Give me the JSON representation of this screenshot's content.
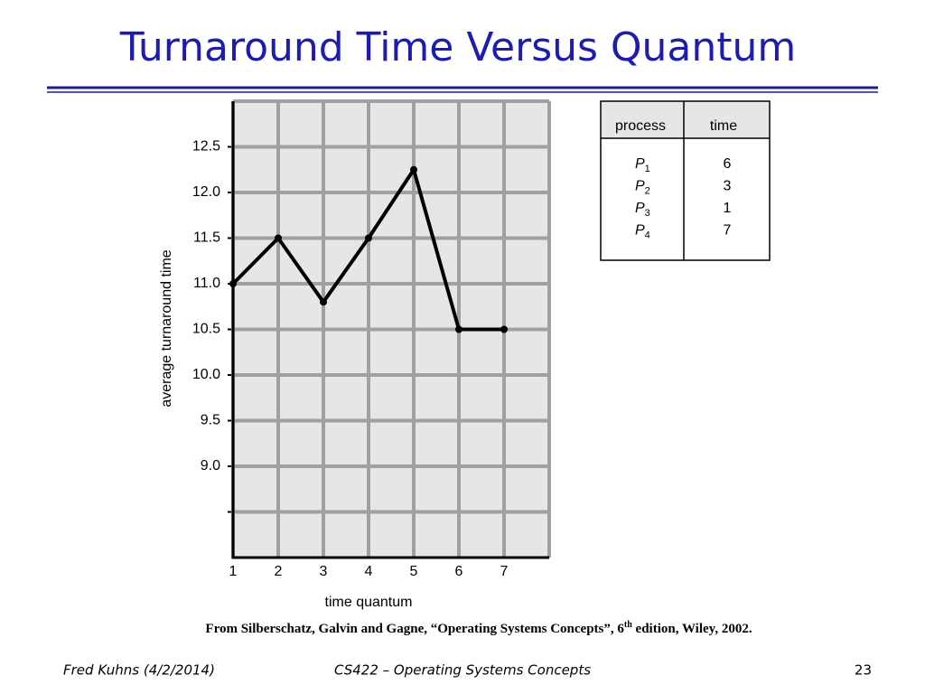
{
  "slide": {
    "title": "Turnaround Time Versus Quantum",
    "citation": {
      "before": "From Silberschatz, Galvin and Gagne, “Operating Systems Concepts”, 6",
      "sup": "th",
      "after": " edition, Wiley, 2002."
    },
    "footer": {
      "left": "Fred Kuhns (4/2/2014)",
      "center": "CS422 – Operating Systems Concepts",
      "right": "23"
    }
  },
  "table": {
    "headers": [
      "process",
      "time"
    ],
    "rows": [
      [
        {
          "name": "P",
          "sub": "1"
        },
        "6"
      ],
      [
        {
          "name": "P",
          "sub": "2"
        },
        "3"
      ],
      [
        {
          "name": "P",
          "sub": "3"
        },
        "1"
      ],
      [
        {
          "name": "P",
          "sub": "4"
        },
        "7"
      ]
    ]
  },
  "chart_data": {
    "type": "line",
    "x_label": "time quantum",
    "y_label": "average turnaround time",
    "x": [
      1,
      2,
      3,
      4,
      5,
      6,
      7
    ],
    "series": [
      {
        "name": "average turnaround time",
        "color": "#000000",
        "values": [
          11.0,
          11.5,
          10.8,
          11.5,
          12.25,
          10.5,
          10.5
        ]
      }
    ],
    "xlim": [
      1,
      8
    ],
    "xticks": [
      1,
      2,
      3,
      4,
      5,
      6,
      7
    ],
    "ylim": [
      8,
      13
    ],
    "yticks": [
      {
        "value": 9,
        "label": "9.0"
      },
      9.5,
      {
        "value": 10,
        "label": "10.0"
      },
      10.5,
      {
        "value": 11,
        "label": "11.0"
      },
      11.5,
      {
        "value": 12,
        "label": "12.0"
      },
      12.5
    ],
    "minor_yticks": [
      8.5
    ],
    "grid": true
  }
}
